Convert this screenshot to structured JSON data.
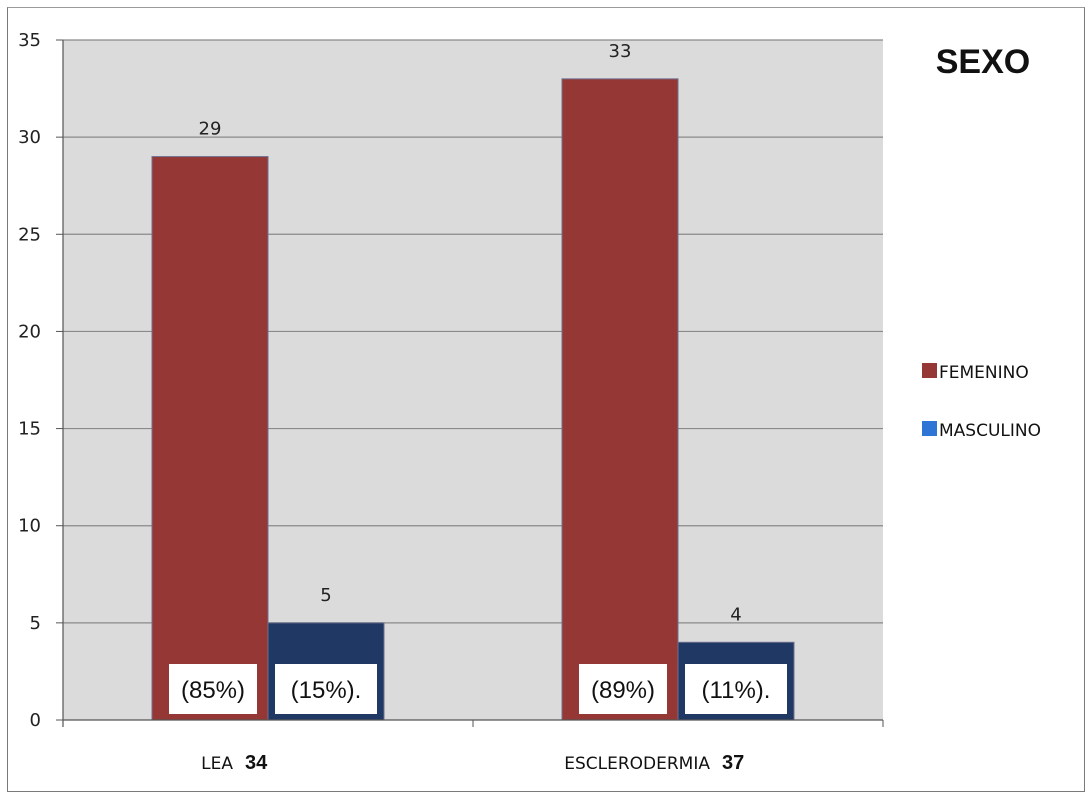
{
  "chart_data": {
    "type": "bar",
    "title": "SEXO",
    "categories": [
      "LEA",
      "ESCLERODERMIA"
    ],
    "category_totals": [
      "34",
      "37"
    ],
    "series": [
      {
        "name": "FEMENINO",
        "values": [
          29,
          33
        ],
        "color": "#953735",
        "percent_labels": [
          "(85%)",
          "(89%)"
        ]
      },
      {
        "name": "MASCULINO",
        "values": [
          5,
          4
        ],
        "color": "#1F3864",
        "percent_labels": [
          "(15%).",
          "(11%)."
        ]
      }
    ],
    "legend_swatch_colors": [
      "#953735",
      "#2E75D6"
    ],
    "ylim": [
      0,
      35
    ],
    "yticks": [
      0,
      5,
      10,
      15,
      20,
      25,
      30,
      35
    ],
    "grid": true,
    "legend_position": "right",
    "xlabel": "",
    "ylabel": ""
  }
}
